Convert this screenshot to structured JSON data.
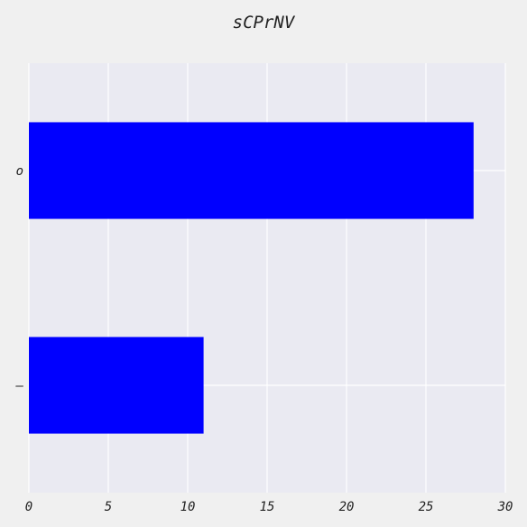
{
  "chart_data": {
    "type": "bar",
    "orientation": "horizontal",
    "title": "sCPrNV",
    "xlabel": "",
    "ylabel": "",
    "categories": [
      "o",
      "–"
    ],
    "values": [
      28,
      11
    ],
    "xlim": [
      0,
      30
    ],
    "xticks": [
      0,
      5,
      10,
      15,
      20,
      25,
      30
    ],
    "grid": true,
    "bar_color": "#0000ff",
    "plot_background": "#eaeaf2",
    "figure_background": "#f0f0f0"
  }
}
